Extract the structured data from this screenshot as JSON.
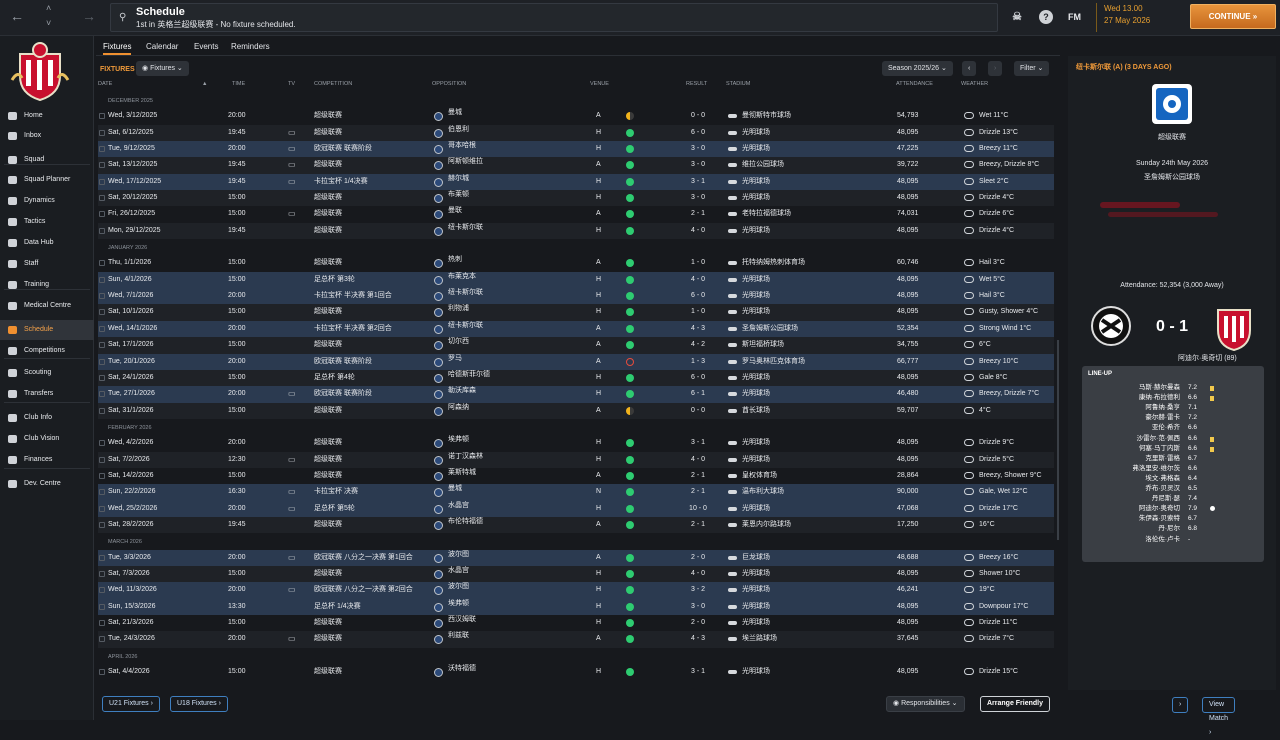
{
  "top": {
    "title": "Schedule",
    "subtitle": "1st in 英格兰超级联赛 - No fixture scheduled.",
    "fm": "FM",
    "time": "Wed 13.00",
    "date": "27 May 2026",
    "continue": "CONTINUE"
  },
  "sidebar": {
    "items": [
      "Home",
      "Inbox",
      "Squad",
      "Squad Planner",
      "Dynamics",
      "Tactics",
      "Data Hub",
      "Staff",
      "Training",
      "Medical Centre",
      "Schedule",
      "Competitions",
      "Scouting",
      "Transfers",
      "Club Info",
      "Club Vision",
      "Finances",
      "Dev. Centre"
    ]
  },
  "tabs": [
    "Fixtures",
    "Calendar",
    "Events",
    "Reminders"
  ],
  "panel": {
    "label": "FIXTURES",
    "view": "Fixtures",
    "season": "Season 2025/26",
    "filter": "Filter"
  },
  "columns": {
    "date": "DATE",
    "time": "TIME",
    "tv": "TV",
    "competition": "COMPETITION",
    "opposition": "OPPOSITION",
    "venue": "VENUE",
    "result": "RESULT",
    "stadium": "STADIUM",
    "attendance": "ATTENDANCE",
    "weather": "WEATHER"
  },
  "colors": {
    "accent": "#f09030",
    "win": "#2ecc71",
    "draw": "#f1b31c",
    "loss": "#e74c3c"
  },
  "rows": [
    {
      "month": "DECEMBER 2025"
    },
    {
      "date": "Wed, 3/12/2025",
      "time": "20:00",
      "tv": false,
      "comp": "超级联赛",
      "opp": "曼城",
      "venue": "A",
      "res": "d",
      "score": "0 - 0",
      "stadium": "曼彻斯特市球场",
      "att": "54,793",
      "weather": "Wet 11°C"
    },
    {
      "date": "Sat, 6/12/2025",
      "time": "19:45",
      "tv": true,
      "comp": "超级联赛",
      "opp": "伯恩利",
      "venue": "H",
      "res": "w",
      "score": "6 - 0",
      "stadium": "光明球场",
      "att": "48,095",
      "weather": "Drizzle 13°C"
    },
    {
      "date": "Tue, 9/12/2025",
      "time": "20:00",
      "tv": true,
      "comp": "欧冠联赛 联赛阶段",
      "opp": "哥本哈根",
      "venue": "H",
      "res": "w",
      "score": "3 - 0",
      "stadium": "光明球场",
      "att": "47,225",
      "weather": "Breezy 11°C",
      "hl": true
    },
    {
      "date": "Sat, 13/12/2025",
      "time": "19:45",
      "tv": true,
      "comp": "超级联赛",
      "opp": "阿斯顿维拉",
      "venue": "A",
      "res": "w",
      "score": "3 - 0",
      "stadium": "维拉公园球场",
      "att": "39,722",
      "weather": "Breezy, Drizzle 8°C"
    },
    {
      "date": "Wed, 17/12/2025",
      "time": "19:45",
      "tv": true,
      "comp": "卡拉宝杯 1/4决赛",
      "opp": "赫尔城",
      "venue": "H",
      "res": "w",
      "score": "3 - 1",
      "stadium": "光明球场",
      "att": "48,095",
      "weather": "Sleet 2°C",
      "hl": true
    },
    {
      "date": "Sat, 20/12/2025",
      "time": "15:00",
      "tv": false,
      "comp": "超级联赛",
      "opp": "布莱顿",
      "venue": "H",
      "res": "w",
      "score": "3 - 0",
      "stadium": "光明球场",
      "att": "48,095",
      "weather": "Drizzle 4°C"
    },
    {
      "date": "Fri, 26/12/2025",
      "time": "15:00",
      "tv": true,
      "comp": "超级联赛",
      "opp": "曼联",
      "venue": "A",
      "res": "w",
      "score": "2 - 1",
      "stadium": "老特拉福德球场",
      "att": "74,031",
      "weather": "Drizzle 6°C"
    },
    {
      "date": "Mon, 29/12/2025",
      "time": "19:45",
      "tv": false,
      "comp": "超级联赛",
      "opp": "纽卡斯尔联",
      "venue": "H",
      "res": "w",
      "score": "4 - 0",
      "stadium": "光明球场",
      "att": "48,095",
      "weather": "Drizzle 4°C"
    },
    {
      "month": "JANUARY 2026"
    },
    {
      "date": "Thu, 1/1/2026",
      "time": "15:00",
      "tv": false,
      "comp": "超级联赛",
      "opp": "热刺",
      "venue": "A",
      "res": "w",
      "score": "1 - 0",
      "stadium": "托特纳姆热刺体育场",
      "att": "60,746",
      "weather": "Hail 3°C"
    },
    {
      "date": "Sun, 4/1/2026",
      "time": "15:00",
      "tv": false,
      "comp": "足总杯 第3轮",
      "opp": "布莱克本",
      "venue": "H",
      "res": "w",
      "score": "4 - 0",
      "stadium": "光明球场",
      "att": "48,095",
      "weather": "Wet 5°C",
      "hl": true
    },
    {
      "date": "Wed, 7/1/2026",
      "time": "20:00",
      "tv": false,
      "comp": "卡拉宝杯 半决赛 第1回合",
      "opp": "纽卡斯尔联",
      "venue": "H",
      "res": "w",
      "score": "6 - 0",
      "stadium": "光明球场",
      "att": "48,095",
      "weather": "Hail 3°C",
      "hl": true
    },
    {
      "date": "Sat, 10/1/2026",
      "time": "15:00",
      "tv": false,
      "comp": "超级联赛",
      "opp": "利物浦",
      "venue": "H",
      "res": "w",
      "score": "1 - 0",
      "stadium": "光明球场",
      "att": "48,095",
      "weather": "Gusty, Shower 4°C"
    },
    {
      "date": "Wed, 14/1/2026",
      "time": "20:00",
      "tv": false,
      "comp": "卡拉宝杯 半决赛 第2回合",
      "opp": "纽卡斯尔联",
      "venue": "A",
      "res": "w",
      "score": "4 - 3",
      "stadium": "圣詹姆斯公园球场",
      "att": "52,354",
      "weather": "Strong Wind 1°C",
      "hl": true
    },
    {
      "date": "Sat, 17/1/2026",
      "time": "15:00",
      "tv": false,
      "comp": "超级联赛",
      "opp": "切尔西",
      "venue": "A",
      "res": "w",
      "score": "4 - 2",
      "stadium": "斯坦福桥球场",
      "att": "34,755",
      "weather": "6°C"
    },
    {
      "date": "Tue, 20/1/2026",
      "time": "20:00",
      "tv": false,
      "comp": "欧冠联赛 联赛阶段",
      "opp": "罗马",
      "venue": "A",
      "res": "l",
      "score": "1 - 3",
      "stadium": "罗马奥林匹克体育场",
      "att": "66,777",
      "weather": "Breezy 10°C",
      "hl": true
    },
    {
      "date": "Sat, 24/1/2026",
      "time": "15:00",
      "tv": false,
      "comp": "足总杯 第4轮",
      "opp": "哈德斯菲尔德",
      "venue": "H",
      "res": "w",
      "score": "6 - 0",
      "stadium": "光明球场",
      "att": "48,095",
      "weather": "Gale 8°C"
    },
    {
      "date": "Tue, 27/1/2026",
      "time": "20:00",
      "tv": true,
      "comp": "欧冠联赛 联赛阶段",
      "opp": "勒沃库森",
      "venue": "H",
      "res": "w",
      "score": "6 - 1",
      "stadium": "光明球场",
      "att": "46,480",
      "weather": "Breezy, Drizzle 7°C",
      "hl": true
    },
    {
      "date": "Sat, 31/1/2026",
      "time": "15:00",
      "tv": false,
      "comp": "超级联赛",
      "opp": "阿森纳",
      "venue": "A",
      "res": "d",
      "score": "0 - 0",
      "stadium": "酋长球场",
      "att": "59,707",
      "weather": "4°C"
    },
    {
      "month": "FEBRUARY 2026"
    },
    {
      "date": "Wed, 4/2/2026",
      "time": "20:00",
      "tv": false,
      "comp": "超级联赛",
      "opp": "埃弗顿",
      "venue": "H",
      "res": "w",
      "score": "3 - 1",
      "stadium": "光明球场",
      "att": "48,095",
      "weather": "Drizzle 9°C"
    },
    {
      "date": "Sat, 7/2/2026",
      "time": "12:30",
      "tv": true,
      "comp": "超级联赛",
      "opp": "诺丁汉森林",
      "venue": "H",
      "res": "w",
      "score": "4 - 0",
      "stadium": "光明球场",
      "att": "48,095",
      "weather": "Drizzle 5°C"
    },
    {
      "date": "Sat, 14/2/2026",
      "time": "15:00",
      "tv": false,
      "comp": "超级联赛",
      "opp": "莱斯特城",
      "venue": "A",
      "res": "w",
      "score": "2 - 1",
      "stadium": "皇权体育场",
      "att": "28,864",
      "weather": "Breezy, Shower 9°C"
    },
    {
      "date": "Sun, 22/2/2026",
      "time": "16:30",
      "tv": true,
      "comp": "卡拉宝杯 决赛",
      "opp": "曼城",
      "venue": "N",
      "res": "w",
      "score": "2 - 1",
      "stadium": "温布利大球场",
      "att": "90,000",
      "weather": "Gale, Wet 12°C",
      "hl": true
    },
    {
      "date": "Wed, 25/2/2026",
      "time": "20:00",
      "tv": true,
      "comp": "足总杯 第5轮",
      "opp": "水晶宫",
      "venue": "H",
      "res": "w",
      "score": "10 - 0",
      "stadium": "光明球场",
      "att": "47,068",
      "weather": "Drizzle 17°C",
      "hl": true
    },
    {
      "date": "Sat, 28/2/2026",
      "time": "19:45",
      "tv": false,
      "comp": "超级联赛",
      "opp": "布伦特福德",
      "venue": "A",
      "res": "w",
      "score": "2 - 1",
      "stadium": "莱恩内尔路球场",
      "att": "17,250",
      "weather": "16°C"
    },
    {
      "month": "MARCH 2026"
    },
    {
      "date": "Tue, 3/3/2026",
      "time": "20:00",
      "tv": true,
      "comp": "欧冠联赛 八分之一决赛 第1回合",
      "opp": "波尔图",
      "venue": "A",
      "res": "w",
      "score": "2 - 0",
      "stadium": "巨龙球场",
      "att": "48,688",
      "weather": "Breezy 16°C",
      "hl": true
    },
    {
      "date": "Sat, 7/3/2026",
      "time": "15:00",
      "tv": false,
      "comp": "超级联赛",
      "opp": "水晶宫",
      "venue": "H",
      "res": "w",
      "score": "4 - 0",
      "stadium": "光明球场",
      "att": "48,095",
      "weather": "Shower 10°C"
    },
    {
      "date": "Wed, 11/3/2026",
      "time": "20:00",
      "tv": true,
      "comp": "欧冠联赛 八分之一决赛 第2回合",
      "opp": "波尔图",
      "venue": "H",
      "res": "w",
      "score": "3 - 2",
      "stadium": "光明球场",
      "att": "46,241",
      "weather": "19°C",
      "hl": true
    },
    {
      "date": "Sun, 15/3/2026",
      "time": "13:30",
      "tv": false,
      "comp": "足总杯 1/4决赛",
      "opp": "埃弗顿",
      "venue": "H",
      "res": "w",
      "score": "3 - 0",
      "stadium": "光明球场",
      "att": "48,095",
      "weather": "Downpour 17°C",
      "hl": true
    },
    {
      "date": "Sat, 21/3/2026",
      "time": "15:00",
      "tv": false,
      "comp": "超级联赛",
      "opp": "西汉姆联",
      "venue": "H",
      "res": "w",
      "score": "2 - 0",
      "stadium": "光明球场",
      "att": "48,095",
      "weather": "Drizzle 11°C"
    },
    {
      "date": "Tue, 24/3/2026",
      "time": "20:00",
      "tv": true,
      "comp": "超级联赛",
      "opp": "利兹联",
      "venue": "A",
      "res": "w",
      "score": "4 - 3",
      "stadium": "埃兰路球场",
      "att": "37,645",
      "weather": "Drizzle 7°C"
    },
    {
      "month": "APRIL 2026"
    },
    {
      "date": "Sat, 4/4/2026",
      "time": "15:00",
      "tv": false,
      "comp": "超级联赛",
      "opp": "沃特福德",
      "venue": "H",
      "res": "w",
      "score": "3 - 1",
      "stadium": "光明球场",
      "att": "48,095",
      "weather": "Drizzle 15°C"
    }
  ],
  "bottom": {
    "u21": "U21 Fixtures",
    "u18": "U18 Fixtures",
    "responsibilities": "Responsibilities",
    "arrange": "Arrange Friendly",
    "view_match": "View Match"
  },
  "match": {
    "header": "纽卡斯尔联 (A) (3 DAYS AGO)",
    "competition": "超级联赛",
    "date": "Sunday 24th May 2026",
    "stadium": "圣詹姆斯公园球场",
    "attendance": "Attendance: 52,354 (3,000 Away)",
    "score": "0 - 1",
    "scorer": "阿迪尔·奥奇切 (89)"
  },
  "lineup": {
    "title": "LINE-UP",
    "players": [
      {
        "n": "马斯·赫尔曼森",
        "r": "7.2",
        "y": true
      },
      {
        "n": "康纳·布拉德利",
        "r": "6.6",
        "y": true
      },
      {
        "n": "阿鲁纳·桑亨",
        "r": "7.1"
      },
      {
        "n": "豪尔赫·雷卡",
        "r": "7.2"
      },
      {
        "n": "亚伦·希齐",
        "r": "6.6"
      },
      {
        "n": "沙雷尔·范·佩西",
        "r": "6.6",
        "y": true
      },
      {
        "n": "何塞·马丁内斯",
        "r": "6.6",
        "y": true
      },
      {
        "n": "克里斯·雷格",
        "r": "6.7"
      },
      {
        "n": "弗洛里安·维尔茨",
        "r": "6.6"
      },
      {
        "n": "埃文·弗格森",
        "r": "6.4"
      },
      {
        "n": "乔布·贝灵汉",
        "r": "6.5"
      },
      {
        "n": "丹尼斯·瑟",
        "r": "7.4"
      },
      {
        "n": "阿迪尔·奥奇切",
        "r": "7.9",
        "g": true
      },
      {
        "n": "朱伊森·贝索特",
        "r": "6.7"
      },
      {
        "n": "丹·尼尔",
        "r": "6.8"
      },
      {
        "n": "洛伦佐·卢卡",
        "r": "-"
      }
    ]
  }
}
